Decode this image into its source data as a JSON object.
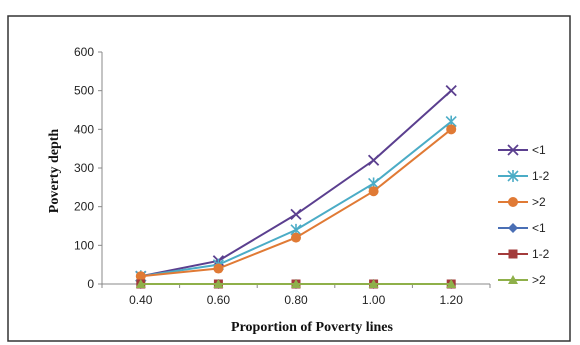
{
  "chart_data": {
    "type": "line",
    "title": "",
    "xlabel": "Proportion of Poverty lines",
    "ylabel": "Poverty depth",
    "categories": [
      "0.40",
      "0.60",
      "0.80",
      "1.00",
      "1.20"
    ],
    "ylim": [
      0,
      600
    ],
    "yticks": [
      0,
      100,
      200,
      300,
      400,
      500,
      600
    ],
    "grid": false,
    "legend_position": "right",
    "series": [
      {
        "name": "<1",
        "values": [
          20,
          60,
          180,
          320,
          500
        ],
        "color": "#5b3f8f",
        "marker": "x"
      },
      {
        "name": "1-2",
        "values": [
          20,
          50,
          140,
          260,
          420
        ],
        "color": "#4bacc6",
        "marker": "asterisk"
      },
      {
        "name": ">2",
        "values": [
          20,
          40,
          120,
          240,
          400
        ],
        "color": "#e07a35",
        "marker": "circle"
      },
      {
        "name": "<1",
        "values": [
          0,
          0,
          0,
          0,
          0
        ],
        "color": "#4a6fb5",
        "marker": "diamond"
      },
      {
        "name": "1-2",
        "values": [
          0,
          0,
          0,
          0,
          0
        ],
        "color": "#a33b3b",
        "marker": "square"
      },
      {
        "name": ">2",
        "values": [
          0,
          0,
          0,
          0,
          0
        ],
        "color": "#8fb04a",
        "marker": "triangle"
      }
    ]
  }
}
